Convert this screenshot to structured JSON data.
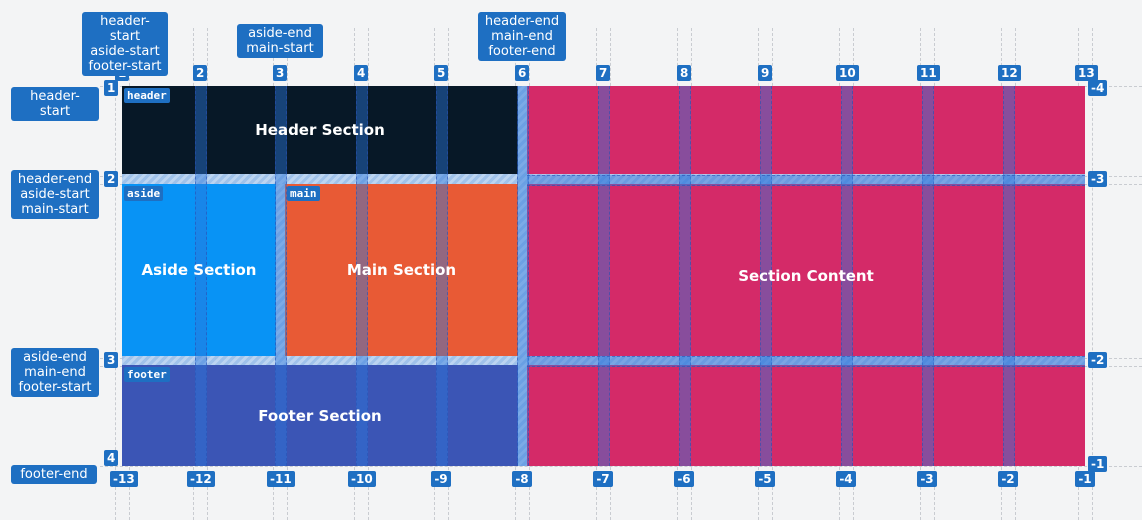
{
  "areas": {
    "header": {
      "tag": "header",
      "title": "Header Section",
      "color": "#071827"
    },
    "aside": {
      "tag": "aside",
      "title": "Aside Section",
      "color": "#0893f5"
    },
    "main": {
      "tag": "main",
      "title": "Main Section",
      "color": "#e85a35"
    },
    "footer": {
      "tag": "footer",
      "title": "Footer Section",
      "color": "#3b55b5"
    },
    "content": {
      "title": "Section Content",
      "color": "#d42a68"
    }
  },
  "top_badges": [
    {
      "lines": [
        "header-start",
        "aside-start",
        "footer-start"
      ]
    },
    {
      "lines": [
        "aside-end",
        "main-start"
      ]
    },
    {
      "lines": [
        "header-end",
        "main-end",
        "footer-end"
      ]
    }
  ],
  "left_badges": [
    {
      "lines": [
        "header-start"
      ]
    },
    {
      "lines": [
        "header-end",
        "aside-start",
        "main-start"
      ]
    },
    {
      "lines": [
        "aside-end",
        "main-end",
        "footer-start"
      ]
    },
    {
      "lines": [
        "footer-end"
      ]
    }
  ],
  "col_numbers_top": [
    "1",
    "2",
    "3",
    "4",
    "5",
    "6",
    "7",
    "8",
    "9",
    "10",
    "11",
    "12",
    "13"
  ],
  "col_numbers_bottom": [
    "-13",
    "-12",
    "-11",
    "-10",
    "-9",
    "-8",
    "-7",
    "-6",
    "-5",
    "-4",
    "-3",
    "-2",
    "-1"
  ],
  "row_numbers_left": [
    "1",
    "2",
    "3",
    "4"
  ],
  "row_numbers_right": [
    "-4",
    "-3",
    "-2",
    "-1"
  ],
  "accent_color": "#1e6fc2"
}
